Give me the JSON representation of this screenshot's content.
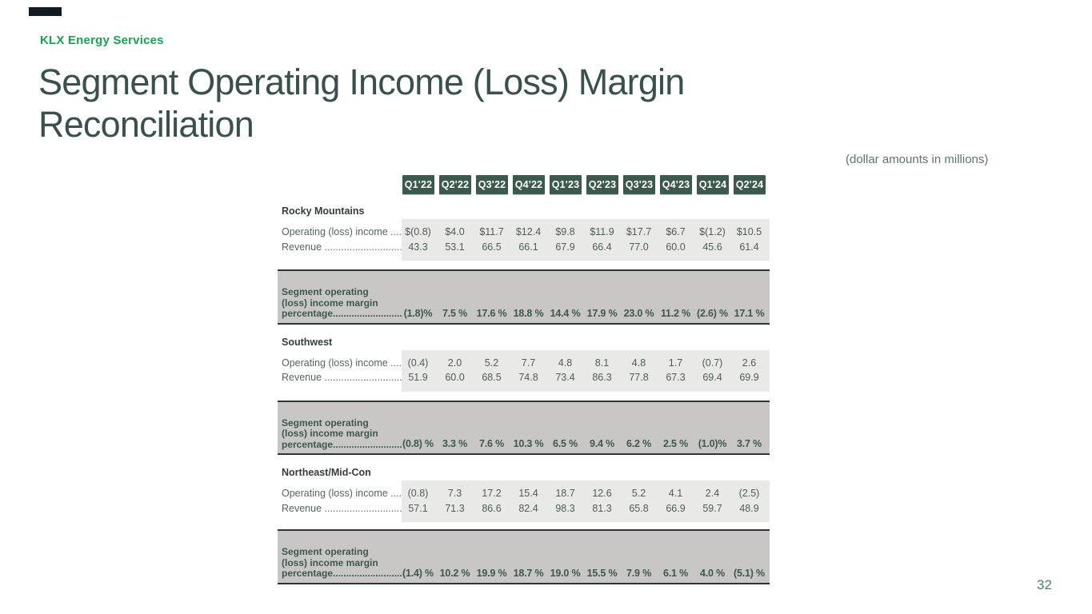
{
  "page": {
    "brand": "KLX Energy Services",
    "title_line1": "Segment Operating Income (Loss) Margin",
    "title_line2": "Reconciliation",
    "subtitle": "(dollar amounts in millions)",
    "page_number": "32"
  },
  "colors": {
    "brand_green": "#1aa14f",
    "header_box_green": "#3c594d",
    "title_color": "#3b504e",
    "light_band": "#e9e9e7",
    "dark_band": "#c8c7c5",
    "band_border": "#2b3733",
    "accent_bar": "#101b21"
  },
  "table": {
    "quarters": [
      "Q1'22",
      "Q2'22",
      "Q3'22",
      "Q4'22",
      "Q1'23",
      "Q2'23",
      "Q3'23",
      "Q4'23",
      "Q1'24",
      "Q2'24"
    ],
    "margin_label_lines": [
      "Segment operating",
      "(loss) income margin",
      "percentage.........................."
    ],
    "segments": [
      {
        "name": "Rocky Mountains",
        "rows": [
          {
            "label": "Operating (loss) income .....",
            "values": [
              "$(0.8)",
              "$4.0",
              "$11.7",
              "$12.4",
              "$9.8",
              "$11.9",
              "$17.7",
              "$6.7",
              "$(1.2)",
              "$10.5"
            ]
          },
          {
            "label": "Revenue ...............................",
            "values": [
              "43.3",
              "53.1",
              "66.5",
              "66.1",
              "67.9",
              "66.4",
              "77.0",
              "60.0",
              "45.6",
              "61.4"
            ]
          }
        ],
        "margin_values": [
          "(1.8)%",
          "7.5 %",
          "17.6 %",
          "18.8 %",
          "14.4 %",
          "17.9 %",
          "23.0 %",
          "11.2 %",
          "(2.6) %",
          "17.1 %"
        ]
      },
      {
        "name": "Southwest",
        "rows": [
          {
            "label": "Operating (loss) income .....",
            "values": [
              "(0.4)",
              "2.0",
              "5.2",
              "7.7",
              "4.8",
              "8.1",
              "4.8",
              "1.7",
              "(0.7)",
              "2.6"
            ]
          },
          {
            "label": "Revenue ...............................",
            "values": [
              "51.9",
              "60.0",
              "68.5",
              "74.8",
              "73.4",
              "86.3",
              "77.8",
              "67.3",
              "69.4",
              "69.9"
            ]
          }
        ],
        "margin_values": [
          "(0.8) %",
          "3.3 %",
          "7.6 %",
          "10.3 %",
          "6.5 %",
          "9.4 %",
          "6.2 %",
          "2.5 %",
          "(1.0)%",
          "3.7 %"
        ]
      },
      {
        "name": "Northeast/Mid-Con",
        "rows": [
          {
            "label": "Operating (loss) income .....",
            "values": [
              "(0.8)",
              "7.3",
              "17.2",
              "15.4",
              "18.7",
              "12.6",
              "5.2",
              "4.1",
              "2.4",
              "(2.5)"
            ]
          },
          {
            "label": "Revenue ...............................",
            "values": [
              "57.1",
              "71.3",
              "86.6",
              "82.4",
              "98.3",
              "81.3",
              "65.8",
              "66.9",
              "59.7",
              "48.9"
            ]
          }
        ],
        "margin_values": [
          "(1.4) %",
          "10.2 %",
          "19.9 %",
          "18.7 %",
          "19.0 %",
          "15.5 %",
          "7.9 %",
          "6.1 %",
          "4.0 %",
          "(5.1) %"
        ]
      }
    ]
  }
}
